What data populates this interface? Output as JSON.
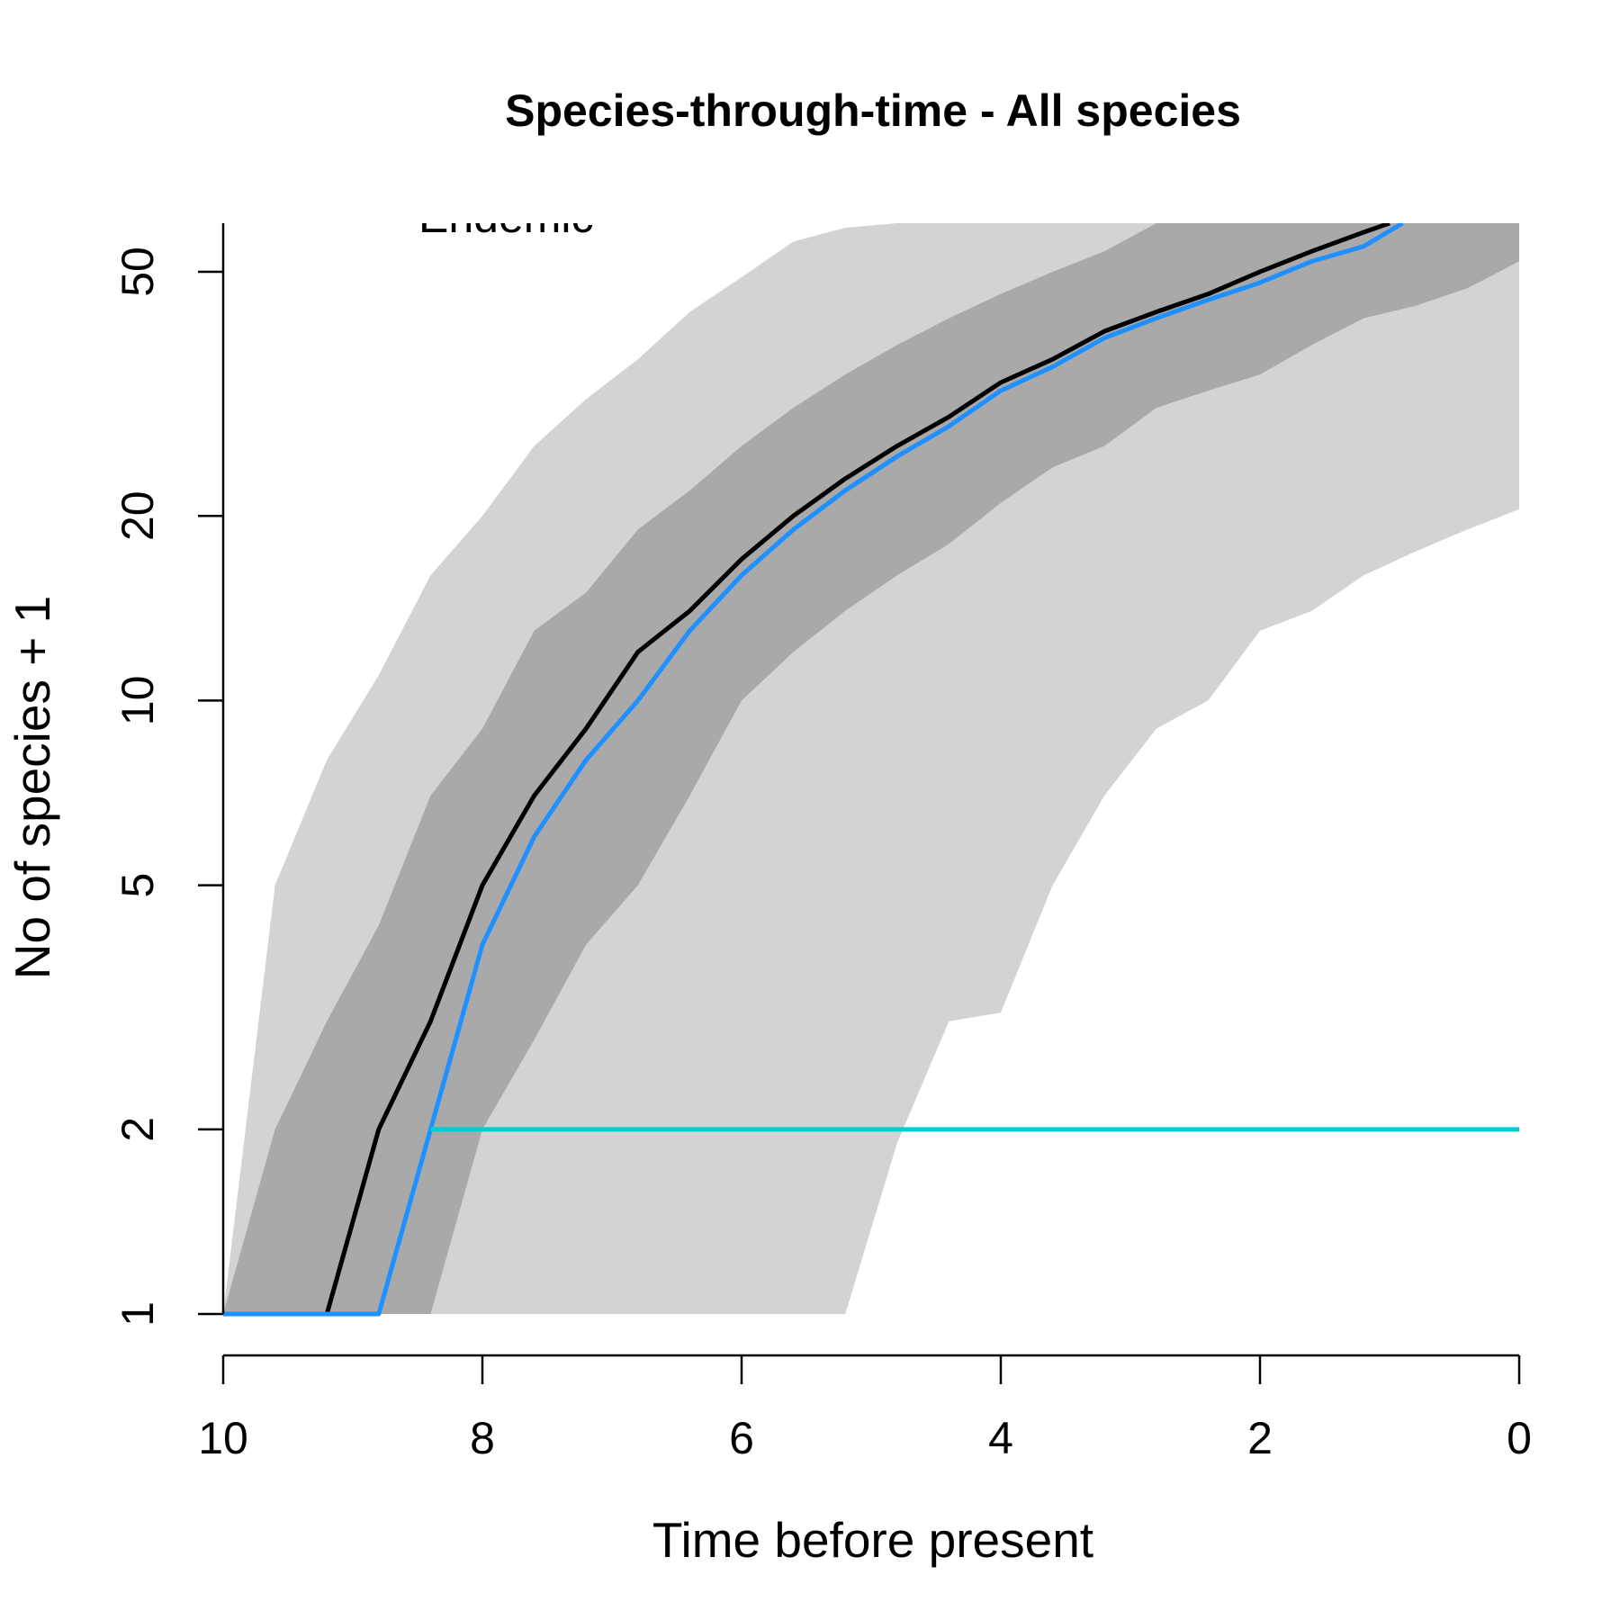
{
  "chart_data": {
    "type": "line",
    "title": "Species-through-time - All species",
    "xlabel": "Time before present",
    "ylabel": "No of species + 1",
    "xlim": [
      10,
      0
    ],
    "ylim_log": [
      1,
      60
    ],
    "y_scale": "log",
    "x_ticks": [
      "10",
      "8",
      "6",
      "4",
      "2",
      "0"
    ],
    "y_ticks": [
      "1",
      "2",
      "5",
      "10",
      "20",
      "50"
    ],
    "legend_fragment": "Endemic",
    "bands": [
      {
        "color": "#d3d3d3",
        "upper": {
          "x": [
            10,
            9.6,
            9.2,
            8.8,
            8.4,
            8.0,
            7.6,
            7.2,
            6.8,
            6.4,
            6.0,
            5.6,
            5.2,
            4.8,
            4.4,
            4.0,
            3.6,
            3.2,
            2.8,
            2.4,
            2.0,
            1.6,
            1.2,
            0.8,
            0.4,
            0.0
          ],
          "y": [
            1,
            5,
            8,
            11,
            16,
            20,
            26,
            31,
            36,
            43,
            49,
            56,
            59,
            60,
            60,
            60,
            60,
            60,
            60,
            60,
            60,
            60,
            60,
            60,
            60,
            60
          ]
        },
        "lower": {
          "x": [
            10,
            9.6,
            9.2,
            8.8,
            8.4,
            8.0,
            7.6,
            7.2,
            6.8,
            6.4,
            6.0,
            5.6,
            5.2,
            4.8,
            4.4,
            4.0,
            3.6,
            3.2,
            2.8,
            2.4,
            2.0,
            1.6,
            1.2,
            0.8,
            0.4,
            0.0
          ],
          "y": [
            1,
            1,
            1,
            1,
            1,
            1,
            1,
            1,
            1,
            1,
            1,
            1,
            1,
            1.9,
            3.0,
            3.1,
            5,
            7,
            9,
            10,
            13,
            14,
            16,
            17.5,
            19,
            20.5
          ]
        }
      },
      {
        "color": "#a9a9a9",
        "upper": {
          "x": [
            10,
            9.6,
            9.2,
            8.8,
            8.4,
            8.0,
            7.6,
            7.2,
            6.8,
            6.4,
            6.0,
            5.6,
            5.2,
            4.8,
            4.4,
            4.0,
            3.6,
            3.2,
            2.8,
            2.4,
            2.0,
            1.6,
            1.2,
            0.8,
            0.4,
            0.0
          ],
          "y": [
            1,
            2,
            3,
            4.3,
            7,
            9,
            13,
            15,
            19,
            22,
            26,
            30,
            34,
            38,
            42,
            46,
            50,
            54,
            60,
            60,
            60,
            60,
            60,
            60,
            60,
            60
          ]
        },
        "lower": {
          "x": [
            10,
            9.6,
            9.2,
            8.8,
            8.4,
            8.0,
            7.6,
            7.2,
            6.8,
            6.4,
            6.0,
            5.6,
            5.2,
            4.8,
            4.4,
            4.0,
            3.6,
            3.2,
            2.8,
            2.4,
            2.0,
            1.6,
            1.2,
            0.8,
            0.4,
            0.0
          ],
          "y": [
            1,
            1,
            1,
            1,
            1,
            2,
            2.8,
            4,
            5,
            7,
            10,
            12,
            14,
            16,
            18,
            21,
            24,
            26,
            30,
            32,
            34,
            38,
            42,
            44,
            47,
            52
          ]
        }
      }
    ],
    "series": [
      {
        "color": "#000000",
        "x": [
          10,
          9.2,
          8.8,
          8.4,
          8.0,
          7.6,
          7.2,
          6.8,
          6.4,
          6.0,
          5.6,
          5.2,
          4.8,
          4.4,
          4.0,
          3.6,
          3.2,
          2.8,
          2.4,
          2.0,
          1.6,
          1.2,
          1.0
        ],
        "y": [
          1,
          1,
          2,
          3,
          5,
          7,
          9,
          12,
          14,
          17,
          20,
          23,
          26,
          29,
          33,
          36,
          40,
          43,
          46,
          50,
          54,
          58,
          60
        ]
      },
      {
        "color": "#1e90ff",
        "x": [
          10,
          8.8,
          8.0,
          7.6,
          7.2,
          6.8,
          6.4,
          6.0,
          5.6,
          5.2,
          4.8,
          4.4,
          4.0,
          3.6,
          3.2,
          2.8,
          2.4,
          2.0,
          1.6,
          1.2,
          0.9
        ],
        "y": [
          1,
          1,
          4,
          6,
          8,
          10,
          13,
          16,
          19,
          22,
          25,
          28,
          32,
          35,
          39,
          42,
          45,
          48,
          52,
          55,
          60
        ]
      },
      {
        "color": "#00ced1",
        "x": [
          8.4,
          0
        ],
        "y": [
          2,
          2
        ]
      }
    ]
  }
}
